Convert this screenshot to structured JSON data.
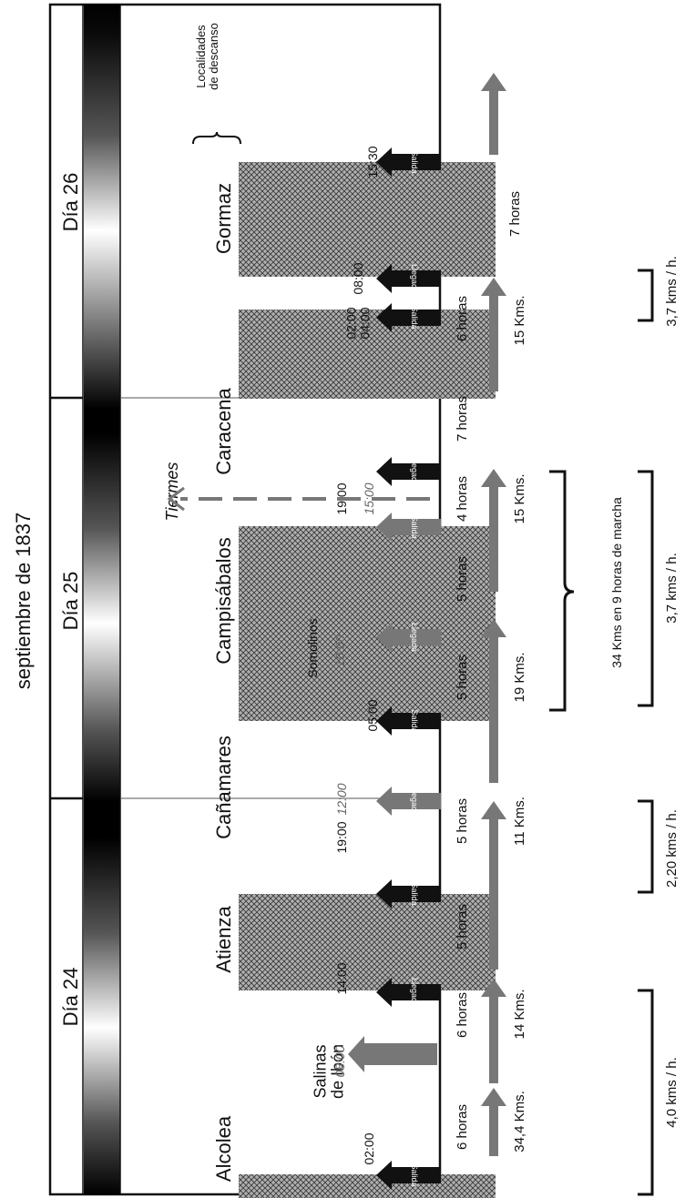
{
  "title": "septiembre de 1837",
  "days": [
    "Día 24",
    "Día 25",
    "Día 26"
  ],
  "legend_rest": "Localidades\nde descanso",
  "towns": [
    {
      "name": "Alcolea",
      "size": 22
    },
    {
      "name": "Salinas\nde Ibón",
      "size": 18
    },
    {
      "name": "Atienza",
      "size": 22
    },
    {
      "name": "Cañamares",
      "size": 22
    },
    {
      "name": "Somolinos",
      "size": 14
    },
    {
      "name": "Campisábalos",
      "size": 22
    },
    {
      "name": "Tiermes",
      "size": 18,
      "italic": true
    },
    {
      "name": "Caracena",
      "size": 22
    },
    {
      "name": "Gormaz",
      "size": 22
    }
  ],
  "times": [
    "02:00",
    "08:00",
    "14:00",
    "19:00",
    "12:00",
    "05:00",
    "10:00",
    "15:00",
    "19:00",
    "02:00\n04:00",
    "08:00",
    "15:30"
  ],
  "arrow_labels": {
    "salida": "Salida",
    "llegada": "Llegada"
  },
  "durations": [
    "6 horas",
    "6 horas",
    "5 horas",
    "5 horas",
    "5 horas",
    "5 horas",
    "4 horas",
    "7 horas",
    "6 horas",
    "7 horas"
  ],
  "distances": [
    "34,4 Kms.",
    "14 Kms.",
    "11 Kms.",
    "19 Kms.",
    "15 Kms.",
    "15 Kms."
  ],
  "summary": "34 Kms en 9 horas de marcha",
  "speeds": [
    "4,0 kms / h.",
    "2,20 kms / h.",
    "3,7 kms / h.",
    "3,7 kms / h."
  ]
}
